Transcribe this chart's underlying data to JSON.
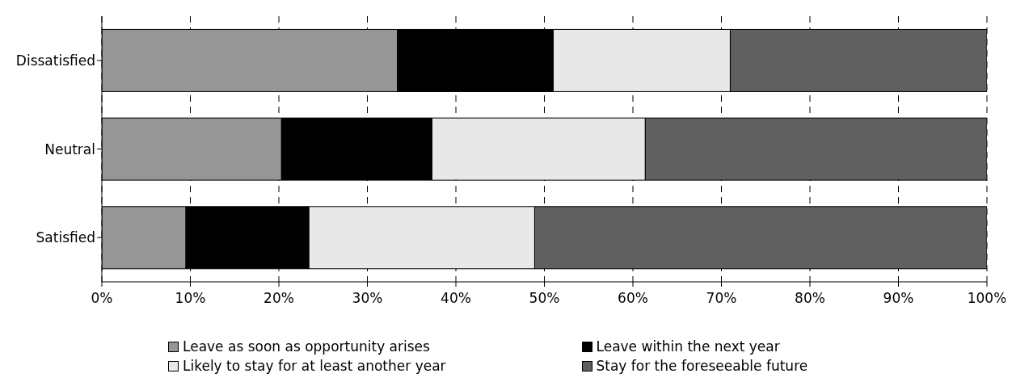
{
  "chart_data": {
    "type": "bar",
    "orientation": "horizontal",
    "stacked": true,
    "categories": [
      "Dissatisfied",
      "Neutral",
      "Satisfied"
    ],
    "series": [
      {
        "name": "Leave as soon as opportunity arises",
        "color": "#969696",
        "values": [
          33.4,
          20.3,
          9.5
        ]
      },
      {
        "name": "Leave within the next year",
        "color": "#000000",
        "values": [
          17.6,
          17.0,
          13.9
        ]
      },
      {
        "name": "Likely to stay for at least another year",
        "color": "#e8e8e8",
        "values": [
          20.0,
          24.1,
          25.5
        ]
      },
      {
        "name": "Stay for the foreseeable future",
        "color": "#606060",
        "values": [
          29.0,
          38.6,
          51.1
        ]
      }
    ],
    "xlim": [
      0,
      100
    ],
    "xticks": [
      {
        "value": 0,
        "label": "0%"
      },
      {
        "value": 10,
        "label": "10%"
      },
      {
        "value": 20,
        "label": "20%"
      },
      {
        "value": 30,
        "label": "30%"
      },
      {
        "value": 40,
        "label": "40%"
      },
      {
        "value": 50,
        "label": "50%"
      },
      {
        "value": 60,
        "label": "60%"
      },
      {
        "value": 70,
        "label": "70%"
      },
      {
        "value": 80,
        "label": "80%"
      },
      {
        "value": 90,
        "label": "90%"
      },
      {
        "value": 100,
        "label": "100%"
      }
    ],
    "grid": "x",
    "legend": "bottom"
  }
}
